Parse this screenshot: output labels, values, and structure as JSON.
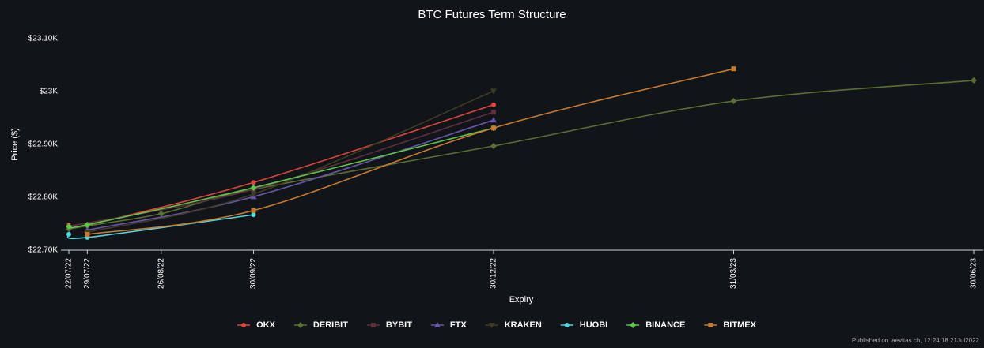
{
  "chart_data": {
    "type": "line",
    "title": "BTC Futures Term Structure",
    "x_label": "Expiry",
    "y_label": "Price ($)",
    "x": [
      "22/07/22",
      "29/07/22",
      "26/08/22",
      "30/09/22",
      "30/12/22",
      "31/03/23",
      "30/06/23"
    ],
    "xlim": [
      "22/07/22",
      "30/06/23"
    ],
    "xticks": [
      "22/07/22",
      "29/07/22",
      "26/08/22",
      "30/09/22",
      "30/12/22",
      "31/03/23",
      "30/06/23"
    ],
    "ylim": [
      22700,
      23100
    ],
    "yticks": [
      {
        "value": 22700,
        "label": "$22.70K"
      },
      {
        "value": 22800,
        "label": "$22.80K"
      },
      {
        "value": 22900,
        "label": "$22.90K"
      },
      {
        "value": 23000,
        "label": "$23K"
      },
      {
        "value": 23100,
        "label": "$23.10K"
      }
    ],
    "series": [
      {
        "name": "OKX",
        "color": "#e0443e",
        "marker": "circle",
        "values": [
          22748,
          22748,
          null,
          22828,
          22975,
          null,
          null
        ]
      },
      {
        "name": "DERIBIT",
        "color": "#5a6e35",
        "marker": "diamond",
        "values": [
          22740,
          22746,
          22769,
          22815,
          22897,
          22982,
          23021
        ]
      },
      {
        "name": "BYBIT",
        "color": "#5e2f3e",
        "marker": "square",
        "values": [
          22745,
          null,
          null,
          22815,
          22961,
          null,
          null
        ]
      },
      {
        "name": "FTX",
        "color": "#6a54a8",
        "marker": "triangle",
        "values": [
          null,
          22738,
          null,
          22801,
          22946,
          null,
          null
        ]
      },
      {
        "name": "KRAKEN",
        "color": "#3f3b25",
        "marker": "down-triangle",
        "values": [
          null,
          22734,
          null,
          22806,
          23001,
          null,
          null
        ]
      },
      {
        "name": "HUOBI",
        "color": "#4dd6e0",
        "marker": "circle",
        "values": [
          22730,
          22724,
          null,
          22767,
          null,
          null,
          null
        ]
      },
      {
        "name": "BINANCE",
        "color": "#5fc64a",
        "marker": "diamond",
        "values": [
          22745,
          22748,
          null,
          22818,
          22931,
          null,
          null
        ]
      },
      {
        "name": "BITMEX",
        "color": "#c87a30",
        "marker": "square",
        "values": [
          null,
          22730,
          null,
          22775,
          22931,
          23043,
          null
        ]
      }
    ],
    "footnote": "Published on laevitas.ch, 12:24:18 21Jul2022"
  }
}
